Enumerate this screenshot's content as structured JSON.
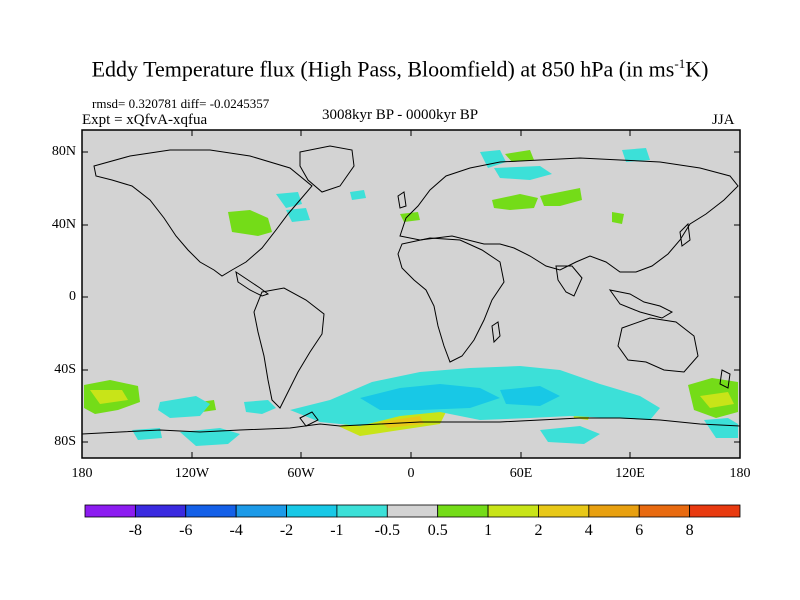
{
  "title": {
    "main": "Eddy Temperature flux (High Pass, Bloomfield) at 850 hPa (in ms",
    "sup": "-1",
    "tail": "K)"
  },
  "stats": "rmsd= 0.320781 diff= -0.0245357",
  "expt": "Expt = xQfvA-xqfua",
  "period": "3008kyr BP - 0000kyr BP",
  "season": "JJA",
  "lat_labels": [
    "80N",
    "40N",
    "0",
    "40S",
    "80S"
  ],
  "lon_labels": [
    "180",
    "120W",
    "60W",
    "0",
    "60E",
    "120E",
    "180"
  ],
  "colorbar": {
    "colors": [
      "#8c1cf0",
      "#3a2ae0",
      "#1460e8",
      "#1c9ae8",
      "#18c8e6",
      "#3ce0d8",
      "#d3d3d3",
      "#74dc18",
      "#c8e418",
      "#e8c818",
      "#e8a010",
      "#e86a10",
      "#e83a10"
    ],
    "labels": [
      "-8",
      "-6",
      "-4",
      "-2",
      "-1",
      "-0.5",
      "0.5",
      "1",
      "2",
      "4",
      "6",
      "8"
    ]
  },
  "map": {
    "background": "#d3d3d3",
    "lat_range": [
      -90,
      90
    ],
    "lon_range": [
      -180,
      180
    ]
  }
}
